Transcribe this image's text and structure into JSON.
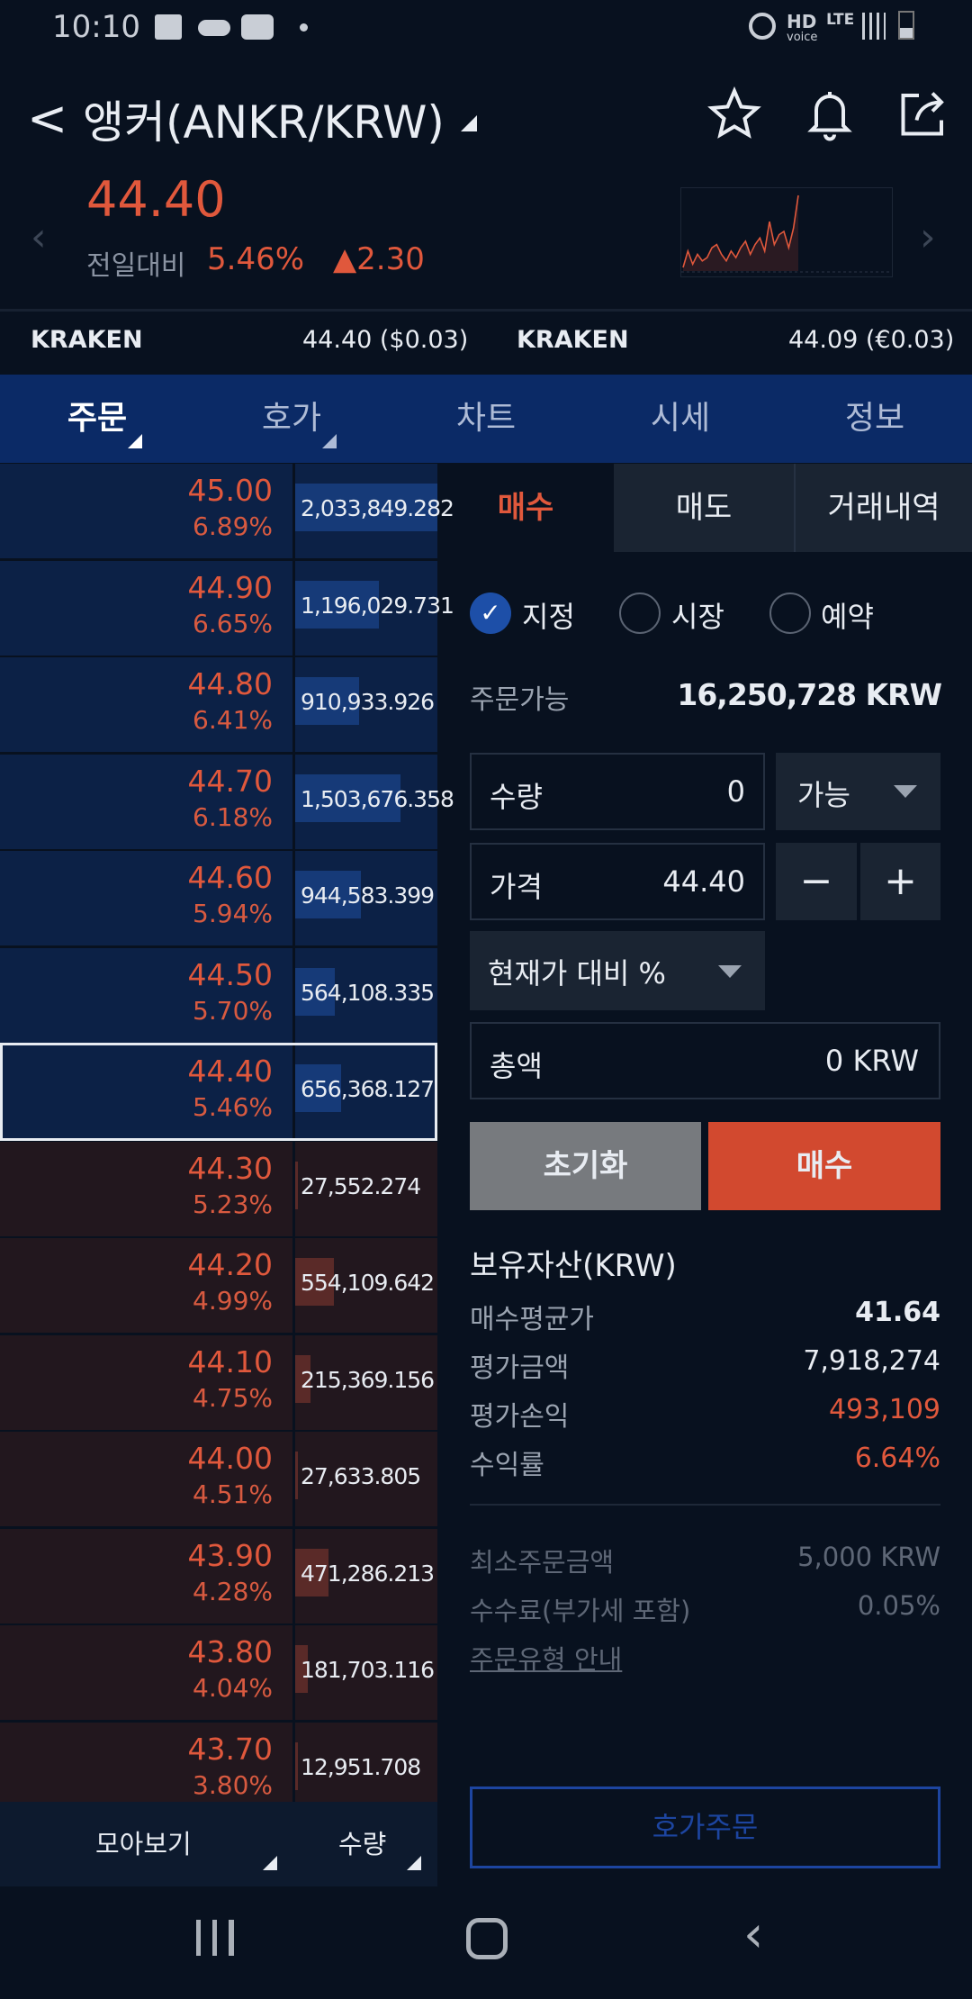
{
  "status_bar": {
    "time": "10:10",
    "icons": [
      "gallery-icon",
      "cloud-icon",
      "youtube-icon",
      "dot-icon",
      "alarm-icon",
      "hd-voice-icon",
      "lte-icon",
      "signal-icon",
      "battery-icon"
    ],
    "hd": "HD",
    "voice": "voice",
    "lte": "LTE"
  },
  "header": {
    "title": "앵커(ANKR/KRW)",
    "price": "44.40",
    "change_label": "전일대비",
    "change_pct": "5.46%",
    "change_abs": "▲2.30"
  },
  "sparkline": [
    2,
    7,
    3,
    6,
    4,
    5,
    8,
    9,
    6,
    4,
    7,
    5,
    8,
    10,
    6,
    9,
    11,
    7,
    16,
    9,
    12,
    13,
    8,
    14,
    24
  ],
  "exchanges": [
    {
      "name": "KRAKEN",
      "value": "44.40 ($0.03)"
    },
    {
      "name": "KRAKEN",
      "value": "44.09 (€0.03)"
    }
  ],
  "tabs": [
    {
      "label": "주문"
    },
    {
      "label": "호가"
    },
    {
      "label": "차트"
    },
    {
      "label": "시세"
    },
    {
      "label": "정보"
    }
  ],
  "orderbook": {
    "asks": [
      {
        "price": "45.00",
        "pct": "6.89%",
        "qty": "2,033,849.282",
        "q": 2033849
      },
      {
        "price": "44.90",
        "pct": "6.65%",
        "qty": "1,196,029.731",
        "q": 1196029
      },
      {
        "price": "44.80",
        "pct": "6.41%",
        "qty": "910,933.926",
        "q": 910933
      },
      {
        "price": "44.70",
        "pct": "6.18%",
        "qty": "1,503,676.358",
        "q": 1503676
      },
      {
        "price": "44.60",
        "pct": "5.94%",
        "qty": "944,583.399",
        "q": 944583
      },
      {
        "price": "44.50",
        "pct": "5.70%",
        "qty": "564,108.335",
        "q": 564108
      },
      {
        "price": "44.40",
        "pct": "5.46%",
        "qty": "656,368.127",
        "q": 656368
      }
    ],
    "bids": [
      {
        "price": "44.30",
        "pct": "5.23%",
        "qty": "27,552.274",
        "q": 27552
      },
      {
        "price": "44.20",
        "pct": "4.99%",
        "qty": "554,109.642",
        "q": 554109
      },
      {
        "price": "44.10",
        "pct": "4.75%",
        "qty": "215,369.156",
        "q": 215369
      },
      {
        "price": "44.00",
        "pct": "4.51%",
        "qty": "27,633.805",
        "q": 27633
      },
      {
        "price": "43.90",
        "pct": "4.28%",
        "qty": "471,286.213",
        "q": 471286
      },
      {
        "price": "43.80",
        "pct": "4.04%",
        "qty": "181,703.116",
        "q": 181703
      },
      {
        "price": "43.70",
        "pct": "3.80%",
        "qty": "12,951.708",
        "q": 12951
      }
    ],
    "footer": {
      "group": "모아보기",
      "qty": "수량"
    }
  },
  "order": {
    "tabs": [
      {
        "label": "매수"
      },
      {
        "label": "매도"
      },
      {
        "label": "거래내역"
      }
    ],
    "types": [
      {
        "label": "지정",
        "checked": true
      },
      {
        "label": "시장",
        "checked": false
      },
      {
        "label": "예약",
        "checked": false
      }
    ],
    "available_label": "주문가능",
    "available_value": "16,250,728 KRW",
    "qty_label": "수량",
    "qty_value": "0",
    "qty_select": "가능",
    "price_label": "가격",
    "price_value": "44.40",
    "minus": "−",
    "plus": "+",
    "pct_select": "현재가 대비 %",
    "total_label": "총액",
    "total_value": "0 KRW",
    "reset": "초기화",
    "buy": "매수",
    "holdings_title": "보유자산(KRW)",
    "holdings": [
      {
        "label": "매수평균가",
        "value": "41.64"
      },
      {
        "label": "평가금액",
        "value": "7,918,274"
      },
      {
        "label": "평가손익",
        "value": "493,109"
      },
      {
        "label": "수익률",
        "value": "6.64%"
      }
    ],
    "info": [
      {
        "label": "최소주문금액",
        "value": "5,000 KRW"
      },
      {
        "label": "수수료(부가세 포함)",
        "value": "0.05%"
      }
    ],
    "guide_link": "주문유형 안내",
    "book_order": "호가주문"
  },
  "colors": {
    "up": "#e0583c",
    "buy_button": "#d2492f",
    "tab_bar": "#0b2a66",
    "ask_bg": "#0c2146",
    "bid_bg": "#22171e"
  }
}
